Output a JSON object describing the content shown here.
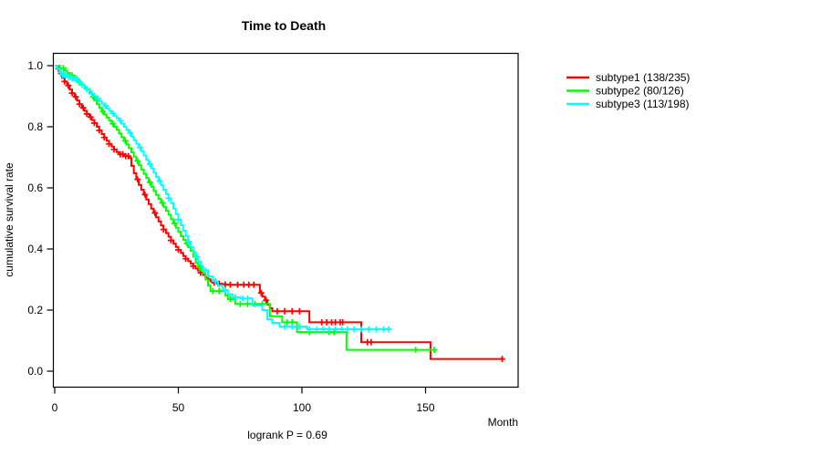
{
  "title": "Time to Death",
  "colors": {
    "background": "#ffffff",
    "axis": "#000000",
    "subtype1": "#ff0000",
    "subtype2": "#00ff00",
    "subtype3": "#00ffff"
  },
  "chart_data": {
    "type": "line",
    "subtype": "kaplan-meier-step",
    "title": "Time to Death",
    "xlabel": "Month",
    "ylabel": "cumulative survival rate",
    "footnote": "logrank P = 0.69",
    "xlim": [
      0,
      187
    ],
    "ylim": [
      0,
      1
    ],
    "grid": false,
    "legend_position": "right-outside",
    "x_ticks": [
      {
        "value": 0,
        "label": "0"
      },
      {
        "value": 50,
        "label": "50"
      },
      {
        "value": 100,
        "label": "100"
      },
      {
        "value": 150,
        "label": "150"
      }
    ],
    "y_ticks": [
      {
        "value": 0.0,
        "label": "0.0"
      },
      {
        "value": 0.2,
        "label": "0.2"
      },
      {
        "value": 0.4,
        "label": "0.4"
      },
      {
        "value": 0.6,
        "label": "0.6"
      },
      {
        "value": 0.8,
        "label": "0.8"
      },
      {
        "value": 1.0,
        "label": "1.0"
      }
    ],
    "series": [
      {
        "name": "subtype1 (138/235)",
        "events": 138,
        "n": 235,
        "color": "#ff0000",
        "points": [
          [
            0,
            1.0
          ],
          [
            1,
            0.99
          ],
          [
            2,
            0.975
          ],
          [
            3,
            0.96
          ],
          [
            4,
            0.948
          ],
          [
            5,
            0.935
          ],
          [
            6,
            0.922
          ],
          [
            7,
            0.91
          ],
          [
            8,
            0.898
          ],
          [
            9,
            0.886
          ],
          [
            10,
            0.874
          ],
          [
            11,
            0.862
          ],
          [
            12,
            0.852
          ],
          [
            13,
            0.842
          ],
          [
            14,
            0.832
          ],
          [
            15,
            0.822
          ],
          [
            16,
            0.812
          ],
          [
            17,
            0.8
          ],
          [
            18,
            0.788
          ],
          [
            19,
            0.776
          ],
          [
            20,
            0.765
          ],
          [
            21,
            0.754
          ],
          [
            22,
            0.744
          ],
          [
            23,
            0.735
          ],
          [
            24,
            0.726
          ],
          [
            25,
            0.717
          ],
          [
            26,
            0.71
          ],
          [
            28,
            0.704
          ],
          [
            30,
            0.698
          ],
          [
            31,
            0.672
          ],
          [
            32,
            0.648
          ],
          [
            33,
            0.628
          ],
          [
            34,
            0.61
          ],
          [
            35,
            0.594
          ],
          [
            36,
            0.578
          ],
          [
            37,
            0.562
          ],
          [
            38,
            0.547
          ],
          [
            39,
            0.532
          ],
          [
            40,
            0.518
          ],
          [
            41,
            0.504
          ],
          [
            42,
            0.49
          ],
          [
            43,
            0.477
          ],
          [
            44,
            0.464
          ],
          [
            45,
            0.452
          ],
          [
            46,
            0.44
          ],
          [
            47,
            0.428
          ],
          [
            48,
            0.417
          ],
          [
            49,
            0.407
          ],
          [
            50,
            0.397
          ],
          [
            51,
            0.387
          ],
          [
            52,
            0.377
          ],
          [
            53,
            0.368
          ],
          [
            54,
            0.36
          ],
          [
            55,
            0.352
          ],
          [
            56,
            0.344
          ],
          [
            57,
            0.336
          ],
          [
            58,
            0.329
          ],
          [
            59,
            0.322
          ],
          [
            60,
            0.315
          ],
          [
            61,
            0.308
          ],
          [
            62,
            0.301
          ],
          [
            63,
            0.295
          ],
          [
            64,
            0.29
          ],
          [
            66,
            0.286
          ],
          [
            68,
            0.284
          ],
          [
            70,
            0.283
          ],
          [
            83,
            0.256
          ],
          [
            84,
            0.244
          ],
          [
            85,
            0.232
          ],
          [
            86,
            0.218
          ],
          [
            87,
            0.206
          ],
          [
            88,
            0.196
          ],
          [
            103,
            0.16
          ],
          [
            124,
            0.095
          ],
          [
            152,
            0.04
          ],
          [
            181,
            0.04
          ]
        ],
        "censor_times": [
          1.5,
          2.5,
          4,
          5.5,
          7,
          8.5,
          10,
          11.5,
          13,
          14.5,
          16,
          18,
          20,
          22,
          24,
          26.5,
          27.5,
          28.7,
          29.8,
          33.5,
          36.5,
          40.5,
          44,
          47,
          50,
          53,
          56,
          59,
          62,
          64.5,
          66.5,
          69,
          71,
          74,
          76.5,
          78.5,
          80.5,
          83.5,
          85.5,
          90,
          93,
          96,
          99,
          108,
          110,
          112,
          113.5,
          115.5,
          116.5,
          126.5,
          128,
          181
        ]
      },
      {
        "name": "subtype2 (80/126)",
        "events": 80,
        "n": 126,
        "color": "#00ff00",
        "points": [
          [
            0,
            1.0
          ],
          [
            2,
            0.992
          ],
          [
            4,
            0.984
          ],
          [
            5,
            0.976
          ],
          [
            6,
            0.968
          ],
          [
            8,
            0.953
          ],
          [
            10,
            0.938
          ],
          [
            12,
            0.924
          ],
          [
            14,
            0.91
          ],
          [
            15,
            0.898
          ],
          [
            16,
            0.886
          ],
          [
            17,
            0.874
          ],
          [
            18,
            0.862
          ],
          [
            19,
            0.85
          ],
          [
            20,
            0.84
          ],
          [
            21,
            0.83
          ],
          [
            22,
            0.82
          ],
          [
            23,
            0.81
          ],
          [
            24,
            0.8
          ],
          [
            25,
            0.79
          ],
          [
            26,
            0.778
          ],
          [
            27,
            0.766
          ],
          [
            28,
            0.754
          ],
          [
            29,
            0.742
          ],
          [
            30,
            0.73
          ],
          [
            31,
            0.716
          ],
          [
            32,
            0.702
          ],
          [
            33,
            0.688
          ],
          [
            34,
            0.674
          ],
          [
            35,
            0.66
          ],
          [
            36,
            0.646
          ],
          [
            37,
            0.632
          ],
          [
            38,
            0.618
          ],
          [
            39,
            0.604
          ],
          [
            40,
            0.59
          ],
          [
            41,
            0.577
          ],
          [
            42,
            0.564
          ],
          [
            43,
            0.551
          ],
          [
            44,
            0.538
          ],
          [
            45,
            0.525
          ],
          [
            46,
            0.512
          ],
          [
            47,
            0.498
          ],
          [
            48,
            0.484
          ],
          [
            49,
            0.47
          ],
          [
            50,
            0.456
          ],
          [
            51,
            0.442
          ],
          [
            52,
            0.43
          ],
          [
            53,
            0.418
          ],
          [
            54,
            0.406
          ],
          [
            55,
            0.394
          ],
          [
            56,
            0.375
          ],
          [
            57,
            0.355
          ],
          [
            58,
            0.34
          ],
          [
            59,
            0.33
          ],
          [
            60,
            0.32
          ],
          [
            61,
            0.3
          ],
          [
            62,
            0.28
          ],
          [
            63,
            0.262
          ],
          [
            69,
            0.248
          ],
          [
            70,
            0.236
          ],
          [
            73,
            0.22
          ],
          [
            87,
            0.18
          ],
          [
            92,
            0.16
          ],
          [
            98,
            0.128
          ],
          [
            118,
            0.07
          ],
          [
            154,
            0.07
          ]
        ],
        "censor_times": [
          3.5,
          7,
          9,
          11,
          13,
          15.5,
          19.5,
          23.5,
          28.5,
          33.5,
          38.5,
          43.5,
          48.5,
          53.5,
          58.5,
          64,
          66.5,
          71,
          75,
          78,
          81,
          84,
          94,
          96,
          103,
          111,
          113,
          146,
          153.5
        ]
      },
      {
        "name": "subtype3 (113/198)",
        "events": 113,
        "n": 198,
        "color": "#00ffff",
        "points": [
          [
            0,
            1.0
          ],
          [
            1,
            0.99
          ],
          [
            2,
            0.978
          ],
          [
            3,
            0.97
          ],
          [
            5,
            0.963
          ],
          [
            7,
            0.957
          ],
          [
            9,
            0.95
          ],
          [
            10,
            0.944
          ],
          [
            11,
            0.937
          ],
          [
            12,
            0.93
          ],
          [
            13,
            0.923
          ],
          [
            14,
            0.916
          ],
          [
            15,
            0.908
          ],
          [
            16,
            0.9
          ],
          [
            17,
            0.892
          ],
          [
            18,
            0.884
          ],
          [
            19,
            0.876
          ],
          [
            20,
            0.868
          ],
          [
            21,
            0.86
          ],
          [
            22,
            0.852
          ],
          [
            23,
            0.844
          ],
          [
            24,
            0.836
          ],
          [
            25,
            0.828
          ],
          [
            26,
            0.82
          ],
          [
            27,
            0.81
          ],
          [
            28,
            0.8
          ],
          [
            29,
            0.79
          ],
          [
            30,
            0.78
          ],
          [
            31,
            0.768
          ],
          [
            32,
            0.756
          ],
          [
            33,
            0.744
          ],
          [
            34,
            0.732
          ],
          [
            35,
            0.72
          ],
          [
            36,
            0.706
          ],
          [
            37,
            0.692
          ],
          [
            38,
            0.678
          ],
          [
            39,
            0.664
          ],
          [
            40,
            0.65
          ],
          [
            41,
            0.636
          ],
          [
            42,
            0.622
          ],
          [
            43,
            0.608
          ],
          [
            44,
            0.594
          ],
          [
            45,
            0.58
          ],
          [
            46,
            0.566
          ],
          [
            47,
            0.55
          ],
          [
            48,
            0.532
          ],
          [
            49,
            0.514
          ],
          [
            50,
            0.496
          ],
          [
            51,
            0.478
          ],
          [
            52,
            0.46
          ],
          [
            53,
            0.442
          ],
          [
            54,
            0.424
          ],
          [
            55,
            0.406
          ],
          [
            56,
            0.39
          ],
          [
            57,
            0.374
          ],
          [
            58,
            0.358
          ],
          [
            59,
            0.344
          ],
          [
            60,
            0.33
          ],
          [
            62,
            0.31
          ],
          [
            64,
            0.295
          ],
          [
            66,
            0.28
          ],
          [
            68,
            0.265
          ],
          [
            70,
            0.252
          ],
          [
            72,
            0.242
          ],
          [
            75,
            0.238
          ],
          [
            80,
            0.215
          ],
          [
            84,
            0.2
          ],
          [
            86,
            0.17
          ],
          [
            88,
            0.158
          ],
          [
            91,
            0.146
          ],
          [
            102,
            0.137
          ],
          [
            135,
            0.137
          ]
        ],
        "censor_times": [
          2.5,
          3.2,
          4,
          4.8,
          5.6,
          6.4,
          7.2,
          8,
          8.8,
          9.6,
          11,
          13,
          15,
          17.5,
          20.5,
          23.5,
          26.5,
          30.5,
          34.5,
          38.5,
          42.5,
          46,
          50,
          54,
          57.5,
          61,
          65,
          69,
          73,
          76,
          78,
          93,
          96,
          99,
          103,
          106,
          108.5,
          111,
          113.5,
          116,
          118.5,
          121,
          124,
          127,
          130,
          133,
          135
        ]
      }
    ]
  }
}
